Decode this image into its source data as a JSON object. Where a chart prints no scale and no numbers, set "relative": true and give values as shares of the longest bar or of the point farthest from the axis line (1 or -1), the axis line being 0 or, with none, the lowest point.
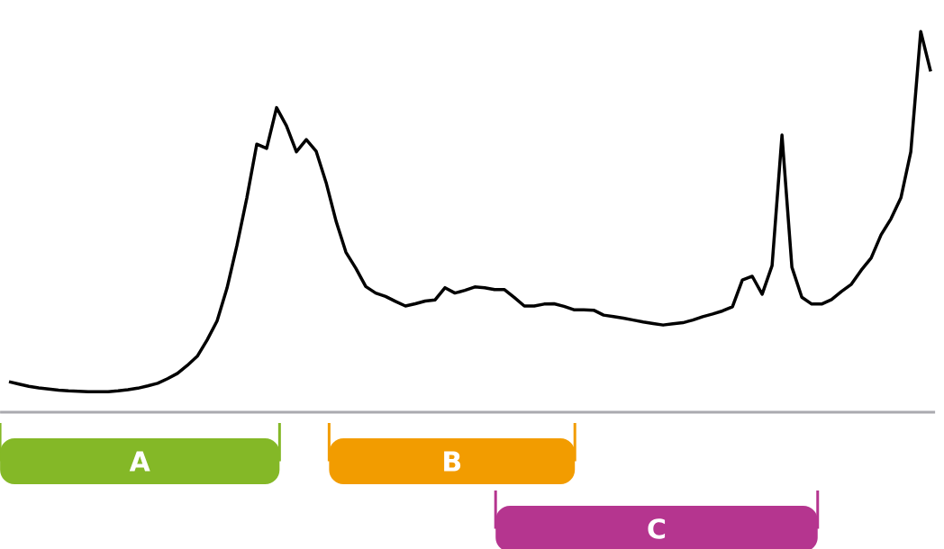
{
  "chart_data": {
    "type": "line",
    "relative": true,
    "color": "#000000",
    "categories": [
      null,
      null,
      null,
      null,
      null,
      null,
      null,
      null,
      null,
      null,
      null,
      null,
      null,
      null,
      null,
      null,
      null,
      null,
      null,
      null,
      null,
      null,
      null,
      null,
      null,
      null,
      null,
      null,
      null,
      null,
      null,
      null,
      null,
      null,
      null,
      null,
      null,
      null,
      null,
      null,
      null,
      null,
      null,
      null,
      null,
      null,
      null,
      null,
      null,
      null,
      null,
      null,
      null,
      null,
      null,
      null,
      null,
      null,
      null,
      null,
      null,
      null,
      null,
      null,
      null,
      null,
      null,
      null,
      null,
      null,
      null,
      null,
      null,
      null,
      null,
      null,
      null,
      null,
      null,
      null,
      null,
      null,
      null,
      null,
      null,
      null,
      null,
      null,
      null,
      null,
      null,
      null,
      null,
      null
    ],
    "values": [
      0.08,
      0.074,
      0.068,
      0.064,
      0.061,
      0.058,
      0.056,
      0.055,
      0.054,
      0.054,
      0.054,
      0.056,
      0.059,
      0.063,
      0.069,
      0.076,
      0.088,
      0.102,
      0.123,
      0.147,
      0.19,
      0.24,
      0.326,
      0.438,
      0.563,
      0.704,
      0.693,
      0.8,
      0.752,
      0.684,
      0.716,
      0.685,
      0.603,
      0.502,
      0.42,
      0.378,
      0.33,
      0.313,
      0.304,
      0.291,
      0.279,
      0.285,
      0.292,
      0.295,
      0.327,
      0.313,
      0.32,
      0.329,
      0.327,
      0.322,
      0.322,
      0.301,
      0.279,
      0.279,
      0.284,
      0.285,
      0.278,
      0.269,
      0.269,
      0.268,
      0.255,
      0.251,
      0.247,
      0.242,
      0.237,
      0.233,
      0.229,
      0.232,
      0.235,
      0.242,
      0.251,
      0.258,
      0.266,
      0.277,
      0.347,
      0.357,
      0.31,
      0.385,
      0.728,
      0.381,
      0.302,
      0.284,
      0.284,
      0.296,
      0.317,
      0.336,
      0.373,
      0.405,
      0.466,
      0.508,
      0.563,
      0.684,
      1.0,
      0.895
    ],
    "annotations": [
      "A",
      "B",
      "C"
    ]
  }
}
